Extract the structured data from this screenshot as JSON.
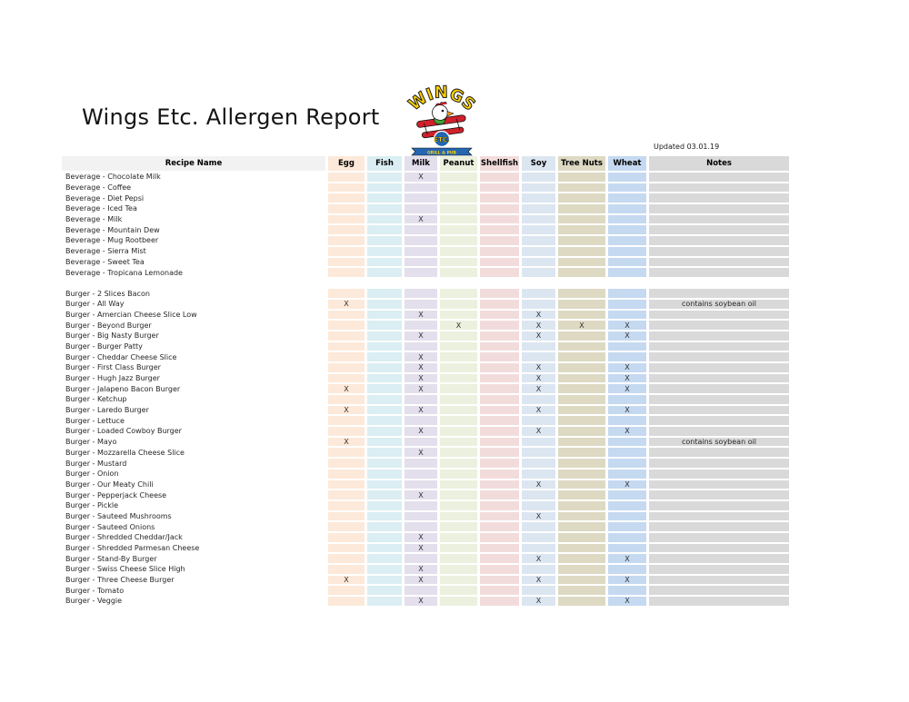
{
  "page": {
    "title": "Wings Etc. Allergen Report",
    "updated": "Updated 03.01.19"
  },
  "logo": {
    "arc_text": "WINGS",
    "badge_text": "ETC.",
    "banner_text": "GRILL & PUB",
    "colors": {
      "yellow": "#FFD200",
      "red": "#D1202A",
      "blue": "#2466B0",
      "green": "#3FA535",
      "orange": "#F7941D"
    }
  },
  "table": {
    "columns": [
      "Recipe Name",
      "Egg",
      "Fish",
      "Milk",
      "Peanut",
      "Shellfish",
      "Soy",
      "Tree Nuts",
      "Wheat",
      "Notes"
    ],
    "allergen_keys": [
      "egg",
      "fish",
      "milk",
      "peanut",
      "shellfish",
      "soy",
      "tree_nuts",
      "wheat"
    ],
    "mark_glyph": "X",
    "column_colors": {
      "recipe_header": "#F2F2F2",
      "egg": "#FDE9D9",
      "fish": "#DAEEF3",
      "milk": "#E4DFEC",
      "peanut": "#EBF1DE",
      "shellfish": "#F2DCDB",
      "soy": "#DCE6F1",
      "tree_nuts": "#DDD9C3",
      "wheat": "#C5D9F1",
      "notes": "#D9D9D9"
    },
    "sections": [
      {
        "name": "beverages",
        "rows": [
          {
            "name": "Beverage - Chocolate Milk",
            "allergens": [
              "milk"
            ],
            "notes": ""
          },
          {
            "name": "Beverage - Coffee",
            "allergens": [],
            "notes": ""
          },
          {
            "name": "Beverage - Diet Pepsi",
            "allergens": [],
            "notes": ""
          },
          {
            "name": "Beverage - Iced Tea",
            "allergens": [],
            "notes": ""
          },
          {
            "name": "Beverage - Milk",
            "allergens": [
              "milk"
            ],
            "notes": ""
          },
          {
            "name": "Beverage - Mountain Dew",
            "allergens": [],
            "notes": ""
          },
          {
            "name": "Beverage - Mug Rootbeer",
            "allergens": [],
            "notes": ""
          },
          {
            "name": "Beverage - Sierra Mist",
            "allergens": [],
            "notes": ""
          },
          {
            "name": "Beverage - Sweet Tea",
            "allergens": [],
            "notes": ""
          },
          {
            "name": "Beverage - Tropicana Lemonade",
            "allergens": [],
            "notes": ""
          }
        ]
      },
      {
        "name": "burgers",
        "rows": [
          {
            "name": "Burger - 2 Slices Bacon",
            "allergens": [],
            "notes": ""
          },
          {
            "name": "Burger - All Way",
            "allergens": [
              "egg"
            ],
            "notes": "contains soybean oil"
          },
          {
            "name": "Burger - Amercian Cheese Slice Low",
            "allergens": [
              "milk",
              "soy"
            ],
            "notes": ""
          },
          {
            "name": "Burger - Beyond Burger",
            "allergens": [
              "peanut",
              "soy",
              "tree_nuts",
              "wheat"
            ],
            "notes": ""
          },
          {
            "name": "Burger - Big Nasty Burger",
            "allergens": [
              "milk",
              "soy",
              "wheat"
            ],
            "notes": ""
          },
          {
            "name": "Burger - Burger Patty",
            "allergens": [],
            "notes": ""
          },
          {
            "name": "Burger - Cheddar Cheese Slice",
            "allergens": [
              "milk"
            ],
            "notes": ""
          },
          {
            "name": "Burger - First Class Burger",
            "allergens": [
              "milk",
              "soy",
              "wheat"
            ],
            "notes": ""
          },
          {
            "name": "Burger - Hugh Jazz Burger",
            "allergens": [
              "milk",
              "soy",
              "wheat"
            ],
            "notes": ""
          },
          {
            "name": "Burger - Jalapeno Bacon Burger",
            "allergens": [
              "egg",
              "milk",
              "soy",
              "wheat"
            ],
            "notes": ""
          },
          {
            "name": "Burger - Ketchup",
            "allergens": [],
            "notes": ""
          },
          {
            "name": "Burger - Laredo Burger",
            "allergens": [
              "egg",
              "milk",
              "soy",
              "wheat"
            ],
            "notes": ""
          },
          {
            "name": "Burger - Lettuce",
            "allergens": [],
            "notes": ""
          },
          {
            "name": "Burger - Loaded Cowboy Burger",
            "allergens": [
              "milk",
              "soy",
              "wheat"
            ],
            "notes": ""
          },
          {
            "name": "Burger - Mayo",
            "allergens": [
              "egg"
            ],
            "notes": "contains soybean oil"
          },
          {
            "name": "Burger - Mozzarella Cheese Slice",
            "allergens": [
              "milk"
            ],
            "notes": ""
          },
          {
            "name": "Burger - Mustard",
            "allergens": [],
            "notes": ""
          },
          {
            "name": "Burger - Onion",
            "allergens": [],
            "notes": ""
          },
          {
            "name": "Burger - Our Meaty Chili",
            "allergens": [
              "soy",
              "wheat"
            ],
            "notes": ""
          },
          {
            "name": "Burger - Pepperjack Cheese",
            "allergens": [
              "milk"
            ],
            "notes": ""
          },
          {
            "name": "Burger - Pickle",
            "allergens": [],
            "notes": ""
          },
          {
            "name": "Burger - Sauteed Mushrooms",
            "allergens": [
              "soy"
            ],
            "notes": ""
          },
          {
            "name": "Burger - Sauteed Onions",
            "allergens": [],
            "notes": ""
          },
          {
            "name": "Burger - Shredded Cheddar/Jack",
            "allergens": [
              "milk"
            ],
            "notes": ""
          },
          {
            "name": "Burger - Shredded Parmesan Cheese",
            "allergens": [
              "milk"
            ],
            "notes": ""
          },
          {
            "name": "Burger - Stand-By Burger",
            "allergens": [
              "soy",
              "wheat"
            ],
            "notes": ""
          },
          {
            "name": "Burger - Swiss Cheese Slice High",
            "allergens": [
              "milk"
            ],
            "notes": ""
          },
          {
            "name": "Burger - Three Cheese Burger",
            "allergens": [
              "egg",
              "milk",
              "soy",
              "wheat"
            ],
            "notes": ""
          },
          {
            "name": "Burger - Tomato",
            "allergens": [],
            "notes": ""
          },
          {
            "name": "Burger - Veggie",
            "allergens": [
              "milk",
              "soy",
              "wheat"
            ],
            "notes": ""
          }
        ]
      }
    ]
  }
}
